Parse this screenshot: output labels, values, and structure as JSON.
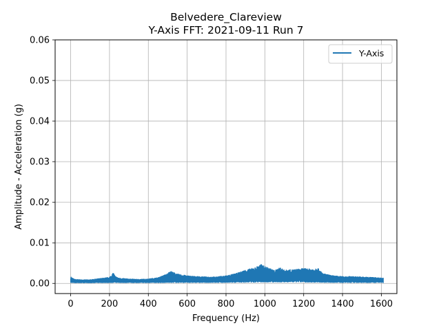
{
  "chart_data": {
    "type": "line",
    "title": "Belvedere_Clareview",
    "subtitle": "Y-Axis FFT: 2021-09-11 Run 7",
    "xlabel": "Frequency (Hz)",
    "ylabel": "Amplitude - Acceleration (g)",
    "xlim": [
      -80,
      1680
    ],
    "ylim": [
      -0.0025,
      0.06
    ],
    "xticks": [
      0,
      200,
      400,
      600,
      800,
      1000,
      1200,
      1400,
      1600
    ],
    "yticks": [
      0.0,
      0.01,
      0.02,
      0.03,
      0.04,
      0.05,
      0.06
    ],
    "ytick_labels": [
      "0.00",
      "0.01",
      "0.02",
      "0.03",
      "0.04",
      "0.05",
      "0.06"
    ],
    "grid": true,
    "legend_position": "top-right",
    "color": "#1f77b4",
    "series": [
      {
        "name": "Y-Axis",
        "envelope": {
          "x": [
            0,
            5,
            20,
            50,
            100,
            150,
            200,
            220,
            230,
            250,
            300,
            350,
            400,
            450,
            500,
            510,
            550,
            600,
            650,
            700,
            750,
            800,
            850,
            900,
            950,
            980,
            1000,
            1050,
            1080,
            1100,
            1150,
            1200,
            1250,
            1270,
            1300,
            1350,
            1400,
            1450,
            1500,
            1550,
            1610
          ],
          "upper": [
            0.0019,
            0.0015,
            0.0011,
            0.001,
            0.001,
            0.0013,
            0.0016,
            0.0027,
            0.0018,
            0.0014,
            0.0012,
            0.0011,
            0.0012,
            0.0015,
            0.0025,
            0.0032,
            0.0024,
            0.002,
            0.0018,
            0.0017,
            0.0017,
            0.002,
            0.0025,
            0.0034,
            0.004,
            0.0048,
            0.0043,
            0.0033,
            0.004,
            0.0034,
            0.0035,
            0.0038,
            0.0036,
            0.004,
            0.0025,
            0.002,
            0.0018,
            0.0018,
            0.0017,
            0.0016,
            0.0014
          ],
          "lower": [
            0.0003,
            0.0003,
            0.0002,
            0.0002,
            0.0002,
            0.0003,
            0.0003,
            0.0004,
            0.0004,
            0.0003,
            0.0003,
            0.0003,
            0.0003,
            0.0003,
            0.0004,
            0.0004,
            0.0004,
            0.0004,
            0.0004,
            0.0004,
            0.0004,
            0.0004,
            0.0005,
            0.0006,
            0.0007,
            0.0008,
            0.0008,
            0.0007,
            0.0007,
            0.0007,
            0.0007,
            0.0007,
            0.0006,
            0.0006,
            0.0005,
            0.0005,
            0.0004,
            0.0004,
            0.0004,
            0.0004,
            0.0004
          ]
        }
      }
    ]
  }
}
